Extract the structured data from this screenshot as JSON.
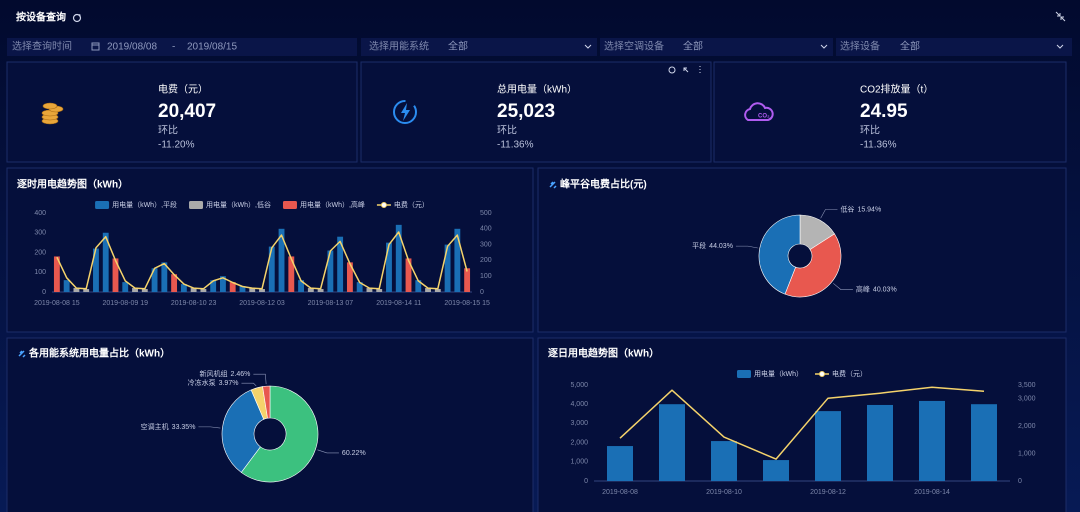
{
  "header": {
    "title": "按设备查询"
  },
  "filters": {
    "time_label": "选择查询时间",
    "start": "2019/08/08",
    "separator": "-",
    "end": "2019/08/15",
    "system_label": "选择用能系统",
    "system_value": "全部",
    "ac_label": "选择空调设备",
    "ac_value": "全部",
    "device_label": "选择设备",
    "device_value": "全部"
  },
  "kpis": [
    {
      "label": "电费（元）",
      "value": "20,407",
      "compare_label": "环比",
      "compare_value": "-11.20%"
    },
    {
      "label": "总用电量（kWh）",
      "value": "25,023",
      "compare_label": "环比",
      "compare_value": "-11.36%"
    },
    {
      "label": "CO2排放量（t）",
      "value": "24.95",
      "compare_label": "环比",
      "compare_value": "-11.36%"
    }
  ],
  "chart_data": [
    {
      "type": "bar",
      "title": "逐时用电趋势图（kWh）",
      "stacked": true,
      "legend": "top",
      "grid": false,
      "categories": [
        "2019-08-08 15",
        null,
        null,
        null,
        null,
        null,
        null,
        "2019-08-09 19",
        null,
        null,
        null,
        null,
        null,
        null,
        "2019-08-10 23",
        null,
        null,
        null,
        null,
        null,
        null,
        "2019-08-12 03",
        null,
        null,
        null,
        null,
        null,
        null,
        "2019-08-13 07",
        null,
        null,
        null,
        null,
        null,
        null,
        "2019-08-14 11",
        null,
        null,
        null,
        null,
        null,
        null,
        "2019-08-15 15"
      ],
      "ylim": [
        0,
        400
      ],
      "yticks": [
        0,
        100,
        200,
        300,
        400
      ],
      "y2lim": [
        0,
        500
      ],
      "y2ticks": [
        0,
        100,
        200,
        300,
        400,
        500
      ],
      "series": [
        {
          "name": "用电量（kWh）,平段",
          "type": "bar",
          "color": "#1a6fb5",
          "values": [
            0,
            60,
            0,
            0,
            220,
            300,
            0,
            50,
            0,
            0,
            120,
            150,
            0,
            40,
            0,
            0,
            60,
            80,
            0,
            30,
            0,
            0,
            230,
            320,
            0,
            60,
            0,
            0,
            210,
            280,
            0,
            50,
            0,
            0,
            250,
            340,
            0,
            60,
            0,
            0,
            240,
            320,
            0
          ]
        },
        {
          "name": "用电量（kWh）,低谷",
          "type": "bar",
          "color": "#aaaaaa",
          "values": [
            0,
            0,
            20,
            15,
            0,
            0,
            0,
            0,
            20,
            15,
            0,
            0,
            0,
            0,
            20,
            15,
            0,
            0,
            0,
            0,
            20,
            15,
            0,
            0,
            0,
            0,
            20,
            15,
            0,
            0,
            0,
            0,
            20,
            15,
            0,
            0,
            0,
            0,
            20,
            15,
            0,
            0,
            0
          ]
        },
        {
          "name": "用电量（kWh）,高峰",
          "type": "bar",
          "color": "#e8584f",
          "values": [
            180,
            0,
            0,
            0,
            0,
            0,
            170,
            0,
            0,
            0,
            0,
            0,
            90,
            0,
            0,
            0,
            0,
            0,
            50,
            0,
            0,
            0,
            0,
            0,
            180,
            0,
            0,
            0,
            0,
            0,
            150,
            0,
            0,
            0,
            0,
            0,
            170,
            0,
            0,
            0,
            0,
            0,
            120
          ]
        },
        {
          "name": "电费（元）",
          "type": "line",
          "axis": "y2",
          "color": "#f5d36b",
          "values": [
            220,
            90,
            25,
            20,
            280,
            350,
            200,
            70,
            25,
            20,
            150,
            180,
            110,
            50,
            25,
            20,
            70,
            90,
            60,
            35,
            25,
            20,
            280,
            360,
            210,
            70,
            25,
            20,
            260,
            320,
            180,
            60,
            25,
            20,
            300,
            380,
            200,
            70,
            25,
            20,
            290,
            360,
            130
          ]
        }
      ]
    },
    {
      "type": "pie",
      "title": "峰平谷电费占比(元)",
      "donut": true,
      "categories": [
        "低谷",
        "高峰",
        "平段"
      ],
      "values": [
        15.94,
        40.03,
        44.03
      ],
      "value_labels": [
        "15.94%",
        "40.03%",
        "44.03%"
      ],
      "colors": [
        "#b4b4b4",
        "#e8584f",
        "#1a6fb5"
      ]
    },
    {
      "type": "pie",
      "title": "各用能系统用电量占比（kWh）",
      "donut": true,
      "categories": [
        null,
        "空调主机",
        "冷冻水泵",
        "新风机组"
      ],
      "values": [
        60.22,
        33.35,
        3.97,
        2.46
      ],
      "value_labels": [
        "60.22%",
        "33.35%",
        "3.97%",
        "2.46%"
      ],
      "colors": [
        "#3cc17f",
        "#1a6fb5",
        "#f5d36b",
        "#e8584f"
      ]
    },
    {
      "type": "bar",
      "title": "逐日用电趋势图（kWh）",
      "stacked": false,
      "legend": "top",
      "grid": false,
      "categories": [
        "2019-08-08",
        null,
        "2019-08-10",
        null,
        "2019-08-12",
        null,
        "2019-08-14",
        null
      ],
      "ylim": [
        0,
        5000
      ],
      "yticks": [
        0,
        {
          "value": 1000,
          "label": "1,000"
        },
        {
          "value": 2000,
          "label": "2,000"
        },
        {
          "value": 3000,
          "label": "3,000"
        },
        {
          "value": 4000,
          "label": "4,000"
        },
        {
          "value": 5000,
          "label": "5,000"
        }
      ],
      "y2lim": [
        0,
        3500
      ],
      "y2ticks": [
        0,
        {
          "value": 1000,
          "label": "1,000"
        },
        {
          "value": 2000,
          "label": "2,000"
        },
        {
          "value": 3000,
          "label": "3,000"
        },
        {
          "value": 3500,
          "label": "3,500"
        }
      ],
      "series": [
        {
          "name": "用电量（kWh）",
          "type": "bar",
          "color": "#1a6fb5",
          "values": [
            1820,
            4000,
            2080,
            1090,
            3640,
            3960,
            4170,
            4000
          ]
        },
        {
          "name": "电费（元）",
          "type": "line",
          "axis": "y2",
          "color": "#f5d36b",
          "values": [
            1560,
            3310,
            1600,
            800,
            3020,
            3200,
            3420,
            3270
          ]
        }
      ]
    }
  ]
}
